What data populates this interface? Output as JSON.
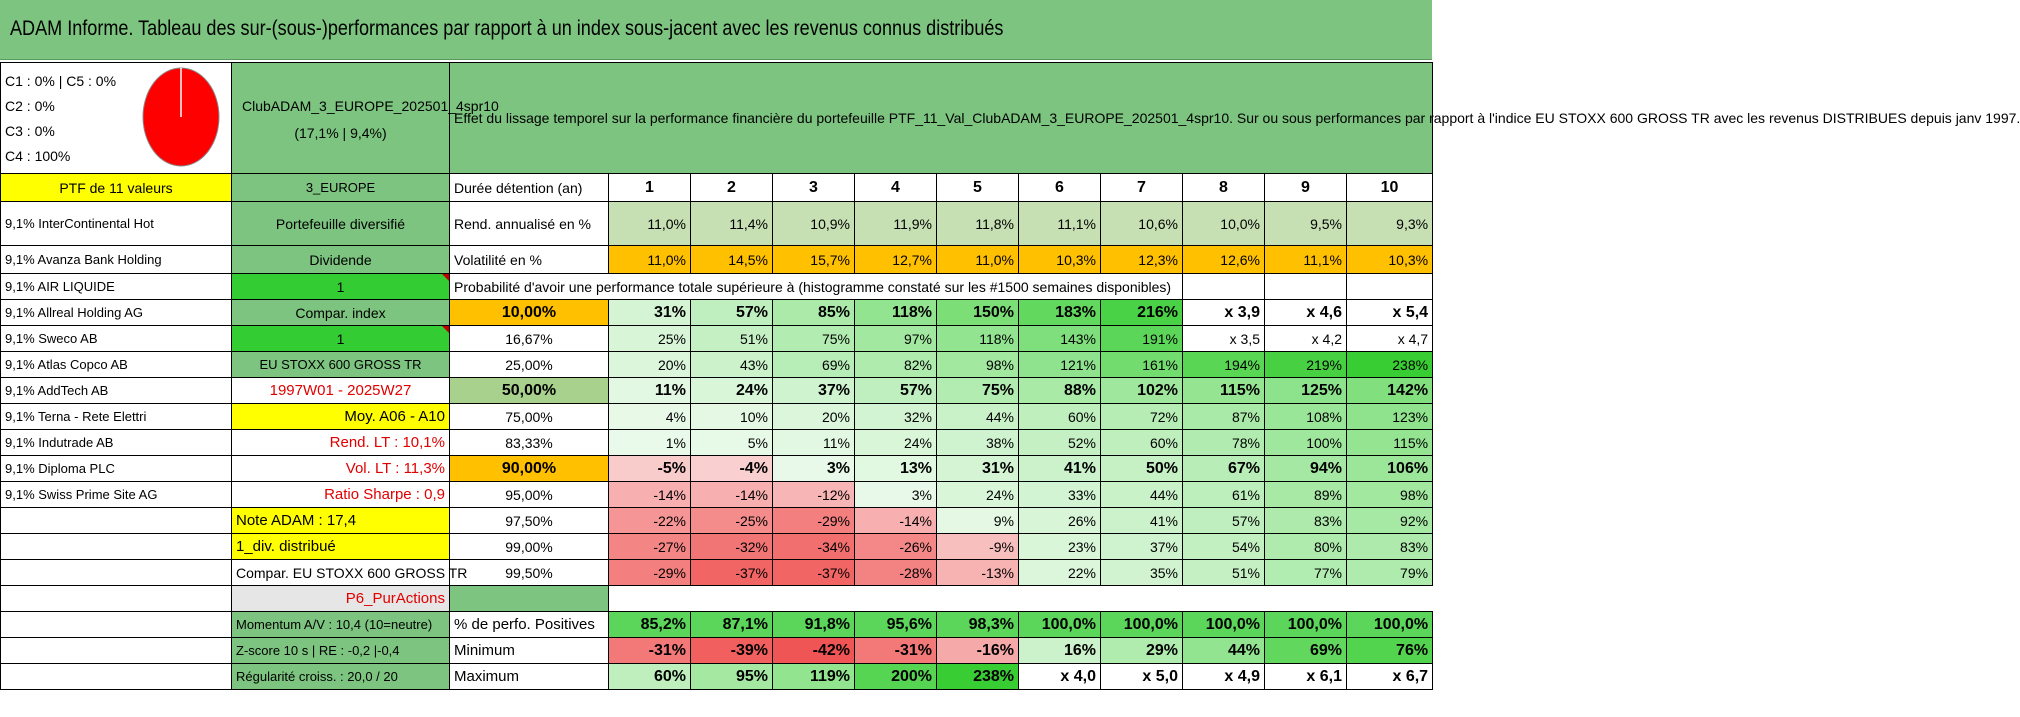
{
  "title": "ADAM Informe. Tableau des sur-(sous-)performances par rapport à un index sous-jacent avec les revenus connus distribués",
  "pie": {
    "legend": [
      "C1 : 0% | C5 : 0%",
      "C2 : 0%",
      "C3 : 0%",
      "C4 : 100%"
    ],
    "color": "#ff0000",
    "c4_fraction": 1.0
  },
  "fund": {
    "name": "ClubADAM_3_EUROPE_202501_4spr10",
    "stats": "(17,1% | 9,4%)"
  },
  "description": "Effet du lissage temporel sur la performance financière du portefeuille PTF_11_Val_ClubADAM_3_EUROPE_202501_4spr10. Sur ou sous performances par rapport à l'indice EU STOXX 600 GROSS TR avec les revenus DISTRIBUES depuis janv 1997.",
  "holdings": [
    "PTF de 11 valeurs",
    "9,1% InterContinental Hot",
    "9,1% Avanza Bank Holding",
    "9,1% AIR LIQUIDE",
    "9,1% Allreal Holding AG",
    "9,1% Sweco AB",
    "9,1% Atlas Copco AB",
    "9,1% AddTech AB",
    "9,1% Terna - Rete Elettri",
    "9,1% Indutrade AB",
    "9,1% Diploma PLC",
    "9,1% Swiss Prime Site AG"
  ],
  "info": [
    "3_EUROPE",
    "Portefeuille diversifié",
    "Dividende",
    "1",
    "Compar. index",
    "1",
    "EU STOXX 600 GROSS TR",
    "1997W01 - 2025W27",
    "Moy. A06 - A10",
    "Rend. LT : 10,1%",
    "Vol. LT : 11,3%",
    "Ratio Sharpe : 0,9",
    "Note ADAM : 17,4",
    "1_div. distribué",
    "Compar. EU STOXX 600 GROSS TR",
    "P6_PurActions",
    "Momentum A/V : 10,4 (10=neutre)",
    "Z-score 10 s | RE : -0,2 |-0,4",
    "Régularité croiss. : 20,0 / 20"
  ],
  "durations": {
    "label": "Durée détention (an)",
    "values": [
      "1",
      "2",
      "3",
      "4",
      "5",
      "6",
      "7",
      "8",
      "9",
      "10"
    ]
  },
  "rend": {
    "label": "Rend. annualisé en %",
    "values": [
      "11,0%",
      "11,4%",
      "10,9%",
      "11,9%",
      "11,8%",
      "11,1%",
      "10,6%",
      "10,0%",
      "9,5%",
      "9,3%"
    ]
  },
  "vol": {
    "label": "Volatilité en %",
    "values": [
      "11,0%",
      "14,5%",
      "15,7%",
      "12,7%",
      "11,0%",
      "10,3%",
      "12,3%",
      "12,6%",
      "11,1%",
      "10,3%"
    ]
  },
  "prob_header": "Probabilité d'avoir une performance totale supérieure à (histogramme constaté sur les #1500 semaines disponibles)",
  "prob_rows": [
    {
      "q": "10,00%",
      "v": [
        "31%",
        "57%",
        "85%",
        "118%",
        "150%",
        "183%",
        "216%",
        "x 3,9",
        "x 4,6",
        "x 5,4"
      ]
    },
    {
      "q": "16,67%",
      "v": [
        "25%",
        "51%",
        "75%",
        "97%",
        "118%",
        "143%",
        "191%",
        "x 3,5",
        "x 4,2",
        "x 4,7"
      ]
    },
    {
      "q": "25,00%",
      "v": [
        "20%",
        "43%",
        "69%",
        "82%",
        "98%",
        "121%",
        "161%",
        "194%",
        "219%",
        "238%"
      ]
    },
    {
      "q": "50,00%",
      "v": [
        "11%",
        "24%",
        "37%",
        "57%",
        "75%",
        "88%",
        "102%",
        "115%",
        "125%",
        "142%"
      ]
    },
    {
      "q": "75,00%",
      "v": [
        "4%",
        "10%",
        "20%",
        "32%",
        "44%",
        "60%",
        "72%",
        "87%",
        "108%",
        "123%"
      ]
    },
    {
      "q": "83,33%",
      "v": [
        "1%",
        "5%",
        "11%",
        "24%",
        "38%",
        "52%",
        "60%",
        "78%",
        "100%",
        "115%"
      ]
    },
    {
      "q": "90,00%",
      "v": [
        "-5%",
        "-4%",
        "3%",
        "13%",
        "31%",
        "41%",
        "50%",
        "67%",
        "94%",
        "106%"
      ]
    },
    {
      "q": "95,00%",
      "v": [
        "-14%",
        "-14%",
        "-12%",
        "3%",
        "24%",
        "33%",
        "44%",
        "61%",
        "89%",
        "98%"
      ]
    },
    {
      "q": "97,50%",
      "v": [
        "-22%",
        "-25%",
        "-29%",
        "-14%",
        "9%",
        "26%",
        "41%",
        "57%",
        "83%",
        "92%"
      ]
    },
    {
      "q": "99,00%",
      "v": [
        "-27%",
        "-32%",
        "-34%",
        "-26%",
        "-9%",
        "23%",
        "37%",
        "54%",
        "80%",
        "83%"
      ]
    },
    {
      "q": "99,50%",
      "v": [
        "-29%",
        "-37%",
        "-37%",
        "-28%",
        "-13%",
        "22%",
        "35%",
        "51%",
        "77%",
        "79%"
      ]
    }
  ],
  "positives": {
    "label": "% de perfo. Positives",
    "values": [
      "85,2%",
      "87,1%",
      "91,8%",
      "95,6%",
      "98,3%",
      "100,0%",
      "100,0%",
      "100,0%",
      "100,0%",
      "100,0%"
    ]
  },
  "minimum": {
    "label": "Minimum",
    "values": [
      "-31%",
      "-39%",
      "-42%",
      "-31%",
      "-16%",
      "16%",
      "29%",
      "44%",
      "69%",
      "76%"
    ]
  },
  "maximum": {
    "label": "Maximum",
    "values": [
      "60%",
      "95%",
      "119%",
      "200%",
      "238%",
      "x 4,0",
      "x 5,0",
      "x 4,9",
      "x 6,1",
      "x 6,7"
    ]
  },
  "colors": {
    "title_green": "#7cc47f",
    "yellow": "#ffff00",
    "bright_green": "#33cc33",
    "orange": "#ffc000",
    "red_text": "#e00000",
    "gray": "#e7e6e6"
  }
}
